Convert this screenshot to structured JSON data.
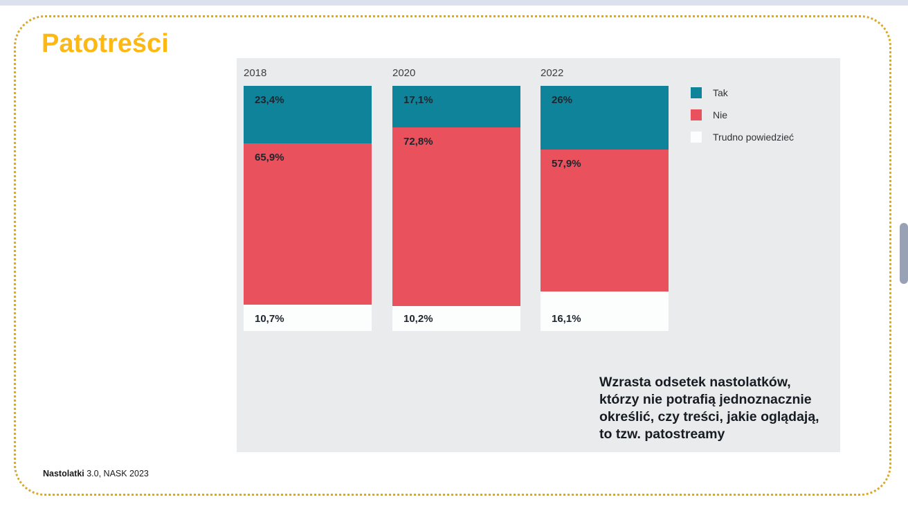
{
  "page": {
    "title": "Patotreści",
    "footer": {
      "bold": "Nastolatki",
      "rest": " 3.0, NASK 2023"
    }
  },
  "chart_data": {
    "type": "bar",
    "variant": "stacked-column",
    "categories": [
      "2018",
      "2020",
      "2022"
    ],
    "series": [
      {
        "name": "Tak",
        "color": "#0F8399",
        "values": [
          23.4,
          17.1,
          26.0
        ],
        "labels": [
          "23,4%",
          "17,1%",
          "26%"
        ]
      },
      {
        "name": "Nie",
        "color": "#E9515C",
        "values": [
          65.9,
          72.8,
          57.9
        ],
        "labels": [
          "65,9%",
          "72,8%",
          "57,9%"
        ]
      },
      {
        "name": "Trudno powiedzieć",
        "color": "#FCFDFD",
        "values": [
          10.7,
          10.2,
          16.1
        ],
        "labels": [
          "10,7%",
          "10,2%",
          "16,1%"
        ]
      }
    ],
    "ylim": [
      0,
      100
    ],
    "grid": false,
    "legend_position": "right"
  },
  "annotation": {
    "lines": [
      "Wzrasta odsetek nastolatków,",
      "którzy nie potrafią jednoznacznie",
      "określić, czy treści, jakie oglądają,",
      "to tzw. patostreamy"
    ]
  },
  "colors": {
    "title": "#FDB813",
    "dotted_border": "#D9A92B",
    "panel_background": "#E9EBED",
    "teal": "#0F8399",
    "red": "#E9515C",
    "white_segment": "#FCFDFD",
    "segment_label_text": "#1D262E",
    "scrollbar_thumb": "#99A2B5",
    "top_strip": "#DBE2EE"
  }
}
